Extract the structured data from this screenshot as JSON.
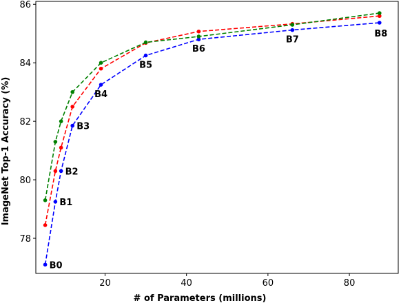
{
  "chart_data": {
    "type": "line",
    "title": "",
    "xlabel": "# of Parameters (millions)",
    "ylabel": "ImageNet Top-1 Accuracy (%)",
    "xlim": [
      3,
      92
    ],
    "ylim": [
      76.8,
      86.1
    ],
    "xticks": [
      20,
      40,
      60,
      80
    ],
    "yticks": [
      78,
      80,
      82,
      84,
      86
    ],
    "grid": false,
    "legend": "none",
    "series": [
      {
        "color": "#0000ff",
        "x": [
          5.3,
          7.8,
          9.2,
          12,
          19,
          30,
          43,
          66,
          87.4
        ],
        "y": [
          77.1,
          79.25,
          80.3,
          81.85,
          83.25,
          84.25,
          84.8,
          85.12,
          85.37
        ]
      },
      {
        "color": "#ff0000",
        "x": [
          5.3,
          7.8,
          9.2,
          12,
          19,
          30,
          43,
          66,
          87.4
        ],
        "y": [
          78.45,
          80.3,
          81.1,
          82.5,
          83.8,
          84.68,
          85.07,
          85.33,
          85.6
        ]
      },
      {
        "color": "#008000",
        "x": [
          5.3,
          7.8,
          9.2,
          12,
          19,
          30,
          43,
          66,
          87.4
        ],
        "y": [
          79.3,
          81.3,
          82.0,
          83.0,
          84.0,
          84.7,
          84.9,
          85.3,
          85.7
        ]
      }
    ],
    "annotations": [
      {
        "text": "B0",
        "x": 5.3,
        "y": 77.1
      },
      {
        "text": "B1",
        "x": 7.8,
        "y": 79.25
      },
      {
        "text": "B2",
        "x": 9.2,
        "y": 80.3
      },
      {
        "text": "B3",
        "x": 12,
        "y": 81.85
      },
      {
        "text": "B4",
        "x": 19,
        "y": 83.25
      },
      {
        "text": "B5",
        "x": 30,
        "y": 84.25
      },
      {
        "text": "B6",
        "x": 43,
        "y": 84.8
      },
      {
        "text": "B7",
        "x": 66,
        "y": 85.12
      },
      {
        "text": "B8",
        "x": 87.4,
        "y": 85.37
      }
    ]
  }
}
